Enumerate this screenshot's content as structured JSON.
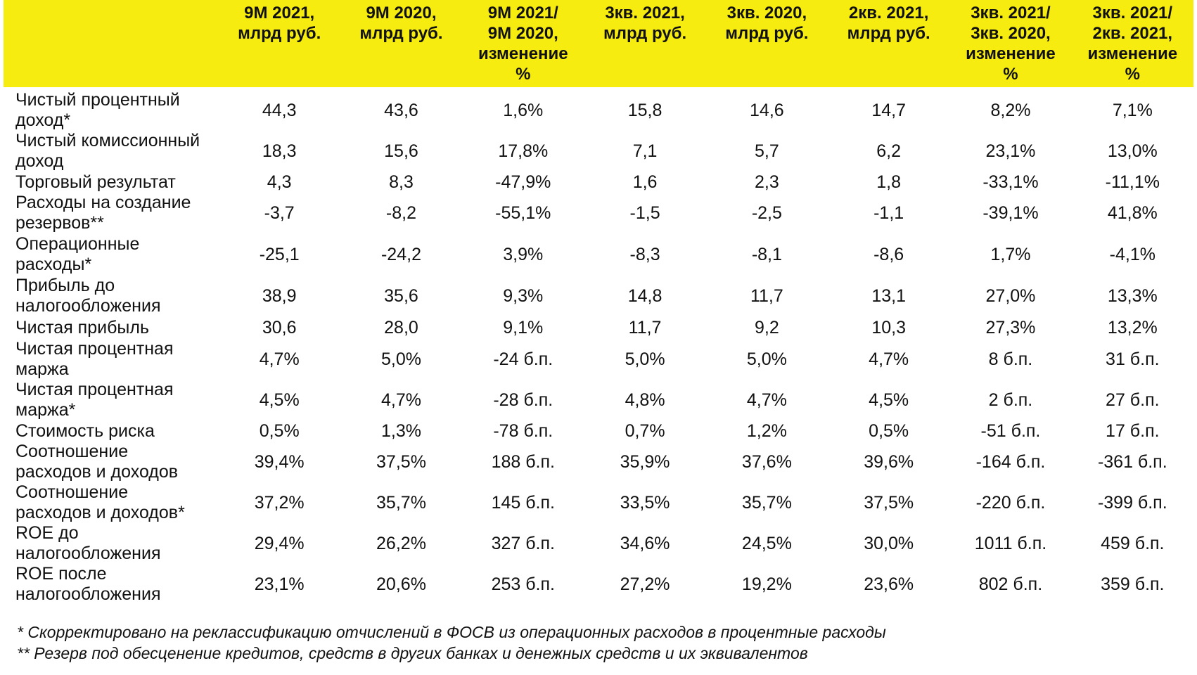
{
  "table": {
    "headers": [
      "",
      "9М 2021,\nмлрд руб.",
      "9М 2020,\nмлрд руб.",
      "9М 2021/\n9М 2020,\nизменение\n%",
      "3кв. 2021,\nмлрд руб.",
      "3кв. 2020,\nмлрд руб.",
      "2кв. 2021,\nмлрд руб.",
      "3кв. 2021/\n3кв. 2020,\nизменение\n%",
      "3кв. 2021/\n2кв. 2021,\nизменение\n%"
    ],
    "rows": [
      {
        "label": "Чистый процентный\nдоход*",
        "values": [
          "44,3",
          "43,6",
          "1,6%",
          "15,8",
          "14,6",
          "14,7",
          "8,2%",
          "7,1%"
        ]
      },
      {
        "label": "Чистый комиссионный\nдоход",
        "values": [
          "18,3",
          "15,6",
          "17,8%",
          "7,1",
          "5,7",
          "6,2",
          "23,1%",
          "13,0%"
        ]
      },
      {
        "label": "Торговый результат",
        "values": [
          "4,3",
          "8,3",
          "-47,9%",
          "1,6",
          "2,3",
          "1,8",
          "-33,1%",
          "-11,1%"
        ]
      },
      {
        "label": "Расходы на создание\nрезервов**",
        "values": [
          "-3,7",
          "-8,2",
          "-55,1%",
          "-1,5",
          "-2,5",
          "-1,1",
          "-39,1%",
          "41,8%"
        ]
      },
      {
        "label": "Операционные\nрасходы*",
        "values": [
          "-25,1",
          "-24,2",
          "3,9%",
          "-8,3",
          "-8,1",
          "-8,6",
          "1,7%",
          "-4,1%"
        ]
      },
      {
        "label": "Прибыль до\nналогообложения",
        "values": [
          "38,9",
          "35,6",
          "9,3%",
          "14,8",
          "11,7",
          "13,1",
          "27,0%",
          "13,3%"
        ]
      },
      {
        "label": "Чистая прибыль",
        "values": [
          "30,6",
          "28,0",
          "9,1%",
          "11,7",
          "9,2",
          "10,3",
          "27,3%",
          "13,2%"
        ]
      },
      {
        "label": "Чистая процентная\nмаржа",
        "values": [
          "4,7%",
          "5,0%",
          "-24 б.п.",
          "5,0%",
          "5,0%",
          "4,7%",
          "8 б.п.",
          "31 б.п."
        ]
      },
      {
        "label": "Чистая процентная\nмаржа*",
        "values": [
          "4,5%",
          "4,7%",
          "-28 б.п.",
          "4,8%",
          "4,7%",
          "4,5%",
          "2 б.п.",
          "27 б.п."
        ]
      },
      {
        "label": "Стоимость риска",
        "values": [
          "0,5%",
          "1,3%",
          "-78 б.п.",
          "0,7%",
          "1,2%",
          "0,5%",
          "-51 б.п.",
          "17 б.п."
        ]
      },
      {
        "label": "Соотношение\nрасходов и доходов",
        "values": [
          "39,4%",
          "37,5%",
          "188 б.п.",
          "35,9%",
          "37,6%",
          "39,6%",
          "-164 б.п.",
          "-361 б.п."
        ]
      },
      {
        "label": "Соотношение\nрасходов и доходов*",
        "values": [
          "37,2%",
          "35,7%",
          "145 б.п.",
          "33,5%",
          "35,7%",
          "37,5%",
          "-220 б.п.",
          "-399 б.п."
        ]
      },
      {
        "label": "ROE до\nналогообложения",
        "values": [
          "29,4%",
          "26,2%",
          "327 б.п.",
          "34,6%",
          "24,5%",
          "30,0%",
          "1011 б.п.",
          "459 б.п."
        ]
      },
      {
        "label": "ROE после\nналогообложения",
        "values": [
          "23,1%",
          "20,6%",
          "253 б.п.",
          "27,2%",
          "19,2%",
          "23,6%",
          "802 б.п.",
          "359 б.п."
        ]
      }
    ]
  },
  "footnotes": [
    "* Скорректировано на реклассификацию отчислений в ФОСВ из операционных расходов в процентные расходы",
    "** Резерв под обесценение кредитов, средств в других банках и денежных средств и их эквивалентов"
  ],
  "colors": {
    "header_background": "#f7ec0f",
    "text": "#111111",
    "page_background": "#ffffff"
  }
}
